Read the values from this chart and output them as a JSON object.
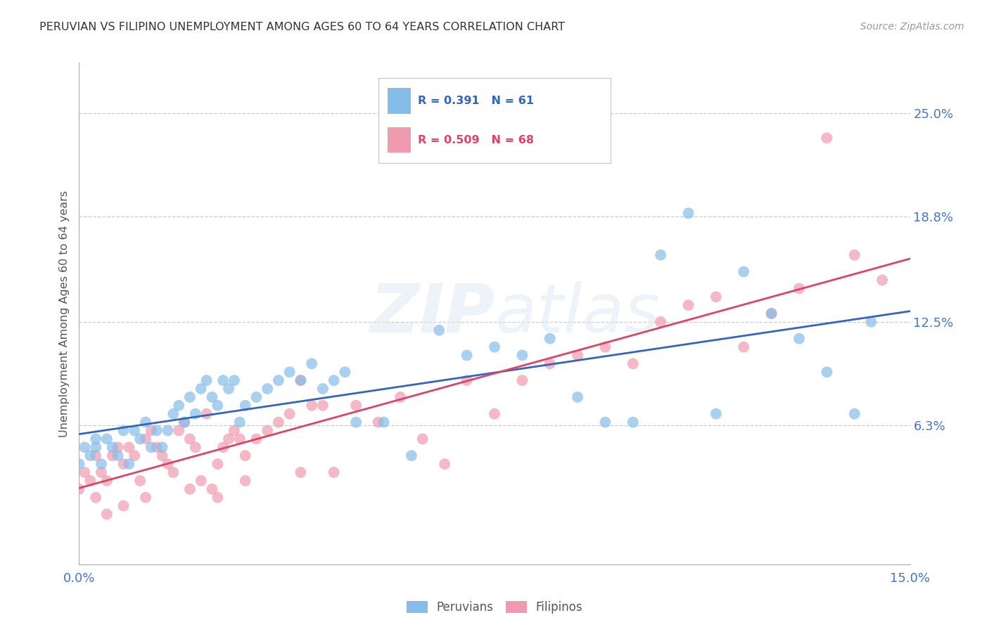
{
  "title": "PERUVIAN VS FILIPINO UNEMPLOYMENT AMONG AGES 60 TO 64 YEARS CORRELATION CHART",
  "source": "Source: ZipAtlas.com",
  "ylabel": "Unemployment Among Ages 60 to 64 years",
  "xlim": [
    0.0,
    0.15
  ],
  "ylim": [
    -0.02,
    0.28
  ],
  "peruvian_R": 0.391,
  "peruvian_N": 61,
  "filipino_R": 0.509,
  "filipino_N": 68,
  "peruvian_color": "#85bde8",
  "filipino_color": "#f09ab0",
  "peruvian_line_color": "#3366bb",
  "filipino_line_color": "#dd4466",
  "ytick_right_vals": [
    0.063,
    0.125,
    0.188,
    0.25
  ],
  "ytick_right_labels": [
    "6.3%",
    "12.5%",
    "18.8%",
    "25.0%"
  ],
  "peruvian_x": [
    0.001,
    0.002,
    0.003,
    0.004,
    0.005,
    0.006,
    0.007,
    0.008,
    0.009,
    0.01,
    0.011,
    0.012,
    0.013,
    0.014,
    0.015,
    0.016,
    0.017,
    0.018,
    0.019,
    0.02,
    0.021,
    0.022,
    0.023,
    0.024,
    0.025,
    0.026,
    0.027,
    0.028,
    0.029,
    0.03,
    0.032,
    0.034,
    0.036,
    0.038,
    0.04,
    0.042,
    0.044,
    0.046,
    0.048,
    0.05,
    0.055,
    0.06,
    0.065,
    0.07,
    0.075,
    0.08,
    0.085,
    0.09,
    0.095,
    0.1,
    0.105,
    0.11,
    0.115,
    0.12,
    0.125,
    0.13,
    0.135,
    0.14,
    0.143,
    0.0,
    0.003
  ],
  "peruvian_y": [
    0.05,
    0.045,
    0.055,
    0.04,
    0.055,
    0.05,
    0.045,
    0.06,
    0.04,
    0.06,
    0.055,
    0.065,
    0.05,
    0.06,
    0.05,
    0.06,
    0.07,
    0.075,
    0.065,
    0.08,
    0.07,
    0.085,
    0.09,
    0.08,
    0.075,
    0.09,
    0.085,
    0.09,
    0.065,
    0.075,
    0.08,
    0.085,
    0.09,
    0.095,
    0.09,
    0.1,
    0.085,
    0.09,
    0.095,
    0.065,
    0.065,
    0.045,
    0.12,
    0.105,
    0.11,
    0.105,
    0.115,
    0.08,
    0.065,
    0.065,
    0.165,
    0.19,
    0.07,
    0.155,
    0.13,
    0.115,
    0.095,
    0.07,
    0.125,
    0.04,
    0.05
  ],
  "filipino_x": [
    0.0,
    0.001,
    0.002,
    0.003,
    0.004,
    0.005,
    0.006,
    0.007,
    0.008,
    0.009,
    0.01,
    0.011,
    0.012,
    0.013,
    0.014,
    0.015,
    0.016,
    0.017,
    0.018,
    0.019,
    0.02,
    0.021,
    0.022,
    0.023,
    0.024,
    0.025,
    0.026,
    0.027,
    0.028,
    0.029,
    0.03,
    0.032,
    0.034,
    0.036,
    0.038,
    0.04,
    0.042,
    0.044,
    0.046,
    0.05,
    0.054,
    0.058,
    0.062,
    0.066,
    0.07,
    0.075,
    0.08,
    0.085,
    0.09,
    0.095,
    0.1,
    0.105,
    0.11,
    0.115,
    0.12,
    0.125,
    0.13,
    0.135,
    0.14,
    0.145,
    0.003,
    0.005,
    0.008,
    0.012,
    0.02,
    0.025,
    0.03,
    0.04
  ],
  "filipino_y": [
    0.025,
    0.035,
    0.03,
    0.045,
    0.035,
    0.03,
    0.045,
    0.05,
    0.04,
    0.05,
    0.045,
    0.03,
    0.055,
    0.06,
    0.05,
    0.045,
    0.04,
    0.035,
    0.06,
    0.065,
    0.055,
    0.05,
    0.03,
    0.07,
    0.025,
    0.04,
    0.05,
    0.055,
    0.06,
    0.055,
    0.045,
    0.055,
    0.06,
    0.065,
    0.07,
    0.09,
    0.075,
    0.075,
    0.035,
    0.075,
    0.065,
    0.08,
    0.055,
    0.04,
    0.09,
    0.07,
    0.09,
    0.1,
    0.105,
    0.11,
    0.1,
    0.125,
    0.135,
    0.14,
    0.11,
    0.13,
    0.145,
    0.235,
    0.165,
    0.15,
    0.02,
    0.01,
    0.015,
    0.02,
    0.025,
    0.02,
    0.03,
    0.035
  ]
}
